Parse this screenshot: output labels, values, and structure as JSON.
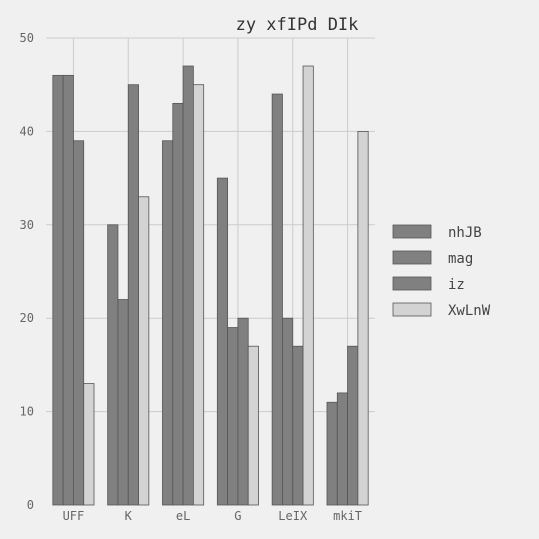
{
  "chart_data": {
    "type": "bar",
    "title": "zy  xfIPd DIk",
    "xlabel": "",
    "ylabel": "",
    "categories": [
      "UFF",
      "K",
      "eL",
      "G",
      "LeIX",
      "mkiT"
    ],
    "series": [
      {
        "name": "nhJB",
        "color": "#808080",
        "values": [
          46,
          30,
          39,
          35,
          44,
          11
        ]
      },
      {
        "name": "mag",
        "color": "#808080",
        "values": [
          46,
          22,
          43,
          19,
          20,
          12
        ]
      },
      {
        "name": "iz",
        "color": "#808080",
        "values": [
          39,
          45,
          47,
          20,
          17,
          17
        ]
      },
      {
        "name": "XwLnW",
        "color": "#d3d3d3",
        "values": [
          13,
          33,
          45,
          17,
          47,
          40
        ]
      }
    ],
    "yticks": [
      "0",
      "10",
      "20",
      "30",
      "40",
      "50"
    ],
    "ylim": [
      0,
      50
    ],
    "grid": true,
    "legend_position": "right",
    "colors": {
      "background": "#f0f0f0",
      "grid": "#cccccc",
      "bar_stroke": "#555555"
    }
  }
}
